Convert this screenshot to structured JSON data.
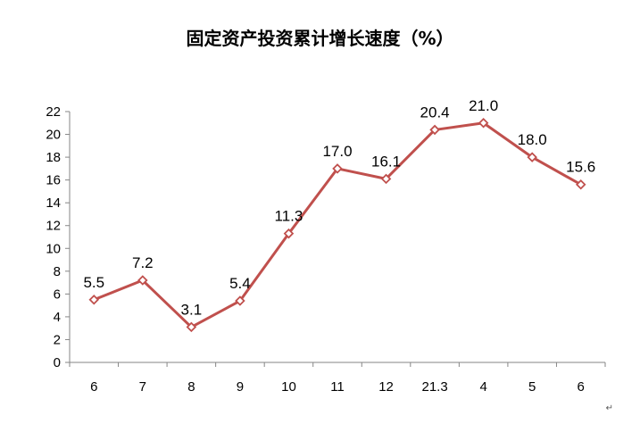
{
  "chart_data": {
    "type": "line",
    "title": "固定资产投资累计增长速度（%）",
    "categories": [
      "6",
      "7",
      "8",
      "9",
      "10",
      "11",
      "12",
      "21.3",
      "4",
      "5",
      "6"
    ],
    "series": [
      {
        "values": [
          5.5,
          7.2,
          3.1,
          5.4,
          11.3,
          17.0,
          16.1,
          20.4,
          21.0,
          18.0,
          15.6
        ]
      }
    ],
    "data_labels": [
      "5.5",
      "7.2",
      "3.1",
      "5.4",
      "11.3",
      "17.0",
      "16.1",
      "20.4",
      "21.0",
      "18.0",
      "15.6"
    ],
    "yticks": [
      "0",
      "2",
      "4",
      "6",
      "8",
      "10",
      "12",
      "14",
      "16",
      "18",
      "20",
      "22"
    ],
    "ylim": [
      0,
      22
    ],
    "grid": false,
    "legend": "none",
    "line_color": "#C0504D"
  }
}
